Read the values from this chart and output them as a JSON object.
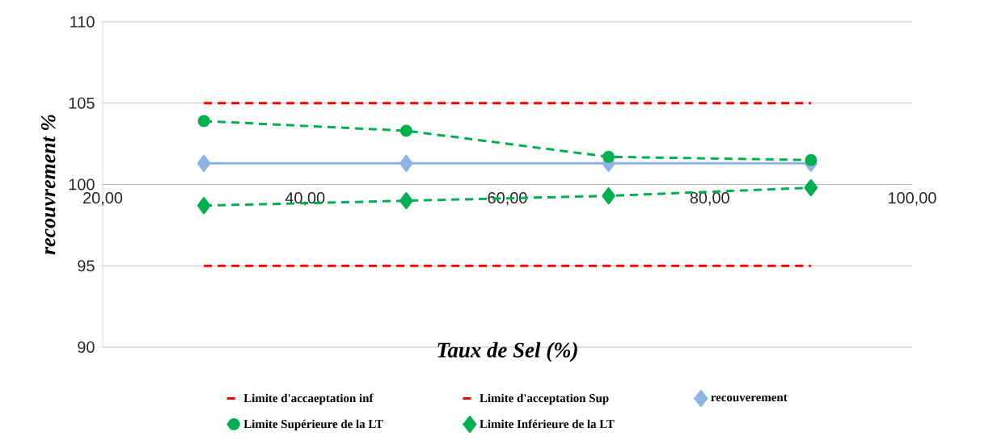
{
  "chart_data": {
    "type": "line",
    "xlabel": "Taux de Sel (%)",
    "ylabel": "recouvrement %",
    "x": [
      30,
      50,
      70,
      90
    ],
    "series": [
      {
        "name": "Limite d'accaeptation inf",
        "color": "#ff0000",
        "values": [
          95,
          95,
          95,
          95
        ],
        "marker": "none",
        "line_style": "dashed"
      },
      {
        "name": "Limite d'acceptation Sup",
        "color": "#ff0000",
        "values": [
          105,
          105,
          105,
          105
        ],
        "marker": "none",
        "line_style": "dashed"
      },
      {
        "name": "recouverement",
        "color": "#8db4e2",
        "values": [
          101.3,
          101.3,
          101.3,
          101.3
        ],
        "marker": "diamond",
        "line_style": "solid"
      },
      {
        "name": "Limite Supérieure de la LT",
        "color": "#00b050",
        "values": [
          103.9,
          103.3,
          101.7,
          101.5
        ],
        "marker": "circle",
        "line_style": "dashed"
      },
      {
        "name": "Limite Inférieure de la LT",
        "color": "#00b050",
        "values": [
          98.7,
          99.0,
          99.3,
          99.8
        ],
        "marker": "diamond",
        "line_style": "dashed"
      }
    ],
    "xlim": [
      20,
      100
    ],
    "xticks": [
      {
        "value": 20,
        "label": "20,00"
      },
      {
        "value": 40,
        "label": "40,00"
      },
      {
        "value": 60,
        "label": "60,00"
      },
      {
        "value": 80,
        "label": "80,00"
      },
      {
        "value": 100,
        "label": "100,00"
      }
    ],
    "ylim": [
      90,
      110
    ],
    "yticks": [
      90,
      95,
      100,
      105,
      110
    ],
    "grid": "y",
    "legend": "bottom"
  }
}
